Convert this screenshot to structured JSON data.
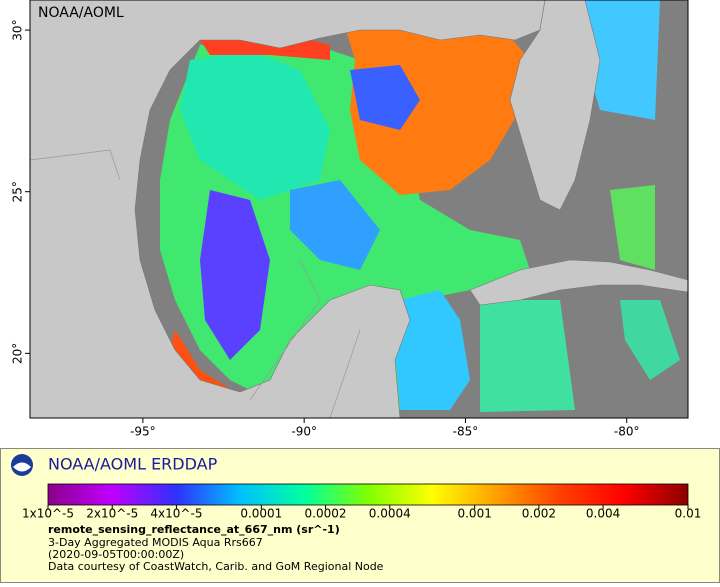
{
  "map": {
    "label": "NOAA/AOML",
    "xlim": [
      -98.5,
      -78.1
    ],
    "ylim": [
      18.0,
      30.93
    ],
    "xticks": [
      {
        "value": -95,
        "label": "-95°"
      },
      {
        "value": -90,
        "label": "-90°"
      },
      {
        "value": -85,
        "label": "-85°"
      },
      {
        "value": -80,
        "label": "-80°"
      }
    ],
    "yticks": [
      {
        "value": 20,
        "label": "20°"
      },
      {
        "value": 25,
        "label": "25°"
      },
      {
        "value": 30,
        "label": "30°"
      }
    ]
  },
  "legend": {
    "title": "NOAA/AOML ERDDAP",
    "colorbar": {
      "scale": "log",
      "lim": [
        1e-05,
        0.01
      ],
      "colors": [
        "#8b008b",
        "#c000ff",
        "#3030ff",
        "#00c0ff",
        "#00ffa0",
        "#80ff00",
        "#ffff00",
        "#ffa000",
        "#ff4000",
        "#ff0000",
        "#8b0000"
      ],
      "ticks": [
        {
          "value": 1e-05,
          "label": "1x10^-5"
        },
        {
          "value": 2e-05,
          "label": "2x10^-5"
        },
        {
          "value": 4e-05,
          "label": "4x10^-5"
        },
        0.0001,
        0.0002,
        0.0004,
        0.001,
        0.002,
        0.004,
        0.01
      ]
    },
    "variable": "remote_sensing_reflectance_at_667_nm (sr^-1)",
    "lines": [
      "3-Day Aggregated MODIS Aqua Rrs667",
      "(2020-09-05T00:00:00Z)",
      "Data courtesy of CoastWatch, Carib. and GoM Regional Node"
    ]
  }
}
